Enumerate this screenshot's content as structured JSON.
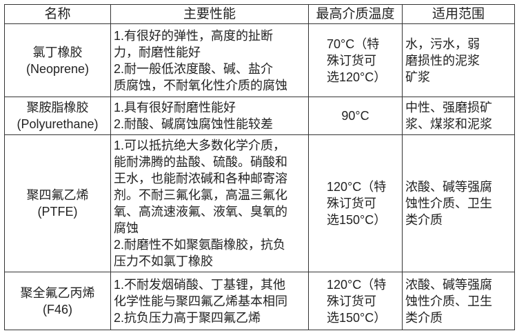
{
  "headers": [
    "名称",
    "主要性能",
    "最高介质温度",
    "适用范围"
  ],
  "rows": [
    {
      "name": "氯丁橡胶\n(Neoprene)",
      "performance": "1.有很好的弹性，高度的扯断\n力，耐磨性能好\n2.耐一般低浓度酸、碱、盐介\n质腐蚀，不耐氧化性介质的腐蚀",
      "max_temp": "70°C（特\n殊订货可\n选120°C）",
      "application": "水，污水，弱\n磨损性的泥浆\n矿浆"
    },
    {
      "name": "聚胺脂橡胶\n(Polyurethane)",
      "performance": "1.具有很好耐磨性能好\n2.耐酸、碱腐蚀腐蚀性能较差",
      "max_temp": "90°C",
      "application": "中性、强磨损矿\n浆、煤浆和泥浆"
    },
    {
      "name": "聚四氟乙烯\n(PTFE)",
      "performance": "1.可以抵抗绝大多数化学介质，\n能耐沸腾的盐酸、硫酸。硝酸和\n王水，也能耐浓碱和各种邮寄溶\n剂。不耐三氟化氯，高温三氟化\n氧、高流速液氟、液氧、臭氧的\n腐蚀\n2.耐磨性不如聚氨酯橡胶，抗负\n压力不如氯丁橡胶",
      "max_temp": "120°C（特\n殊订货可\n选150°C）",
      "application": "浓酸、碱等强腐\n蚀性介质、卫生\n类介质"
    },
    {
      "name": "聚全氟乙丙烯\n(F46)",
      "performance": "1.不耐发烟硝酸、丁基锂，其他\n化学性能与聚四氟乙烯基本相同\n2.抗负压力高于聚四氟乙烯",
      "max_temp": "120°C（特\n殊订货可\n选150°C）",
      "application": "浓酸、碱等强腐\n蚀性介质、卫生\n类介质"
    }
  ]
}
